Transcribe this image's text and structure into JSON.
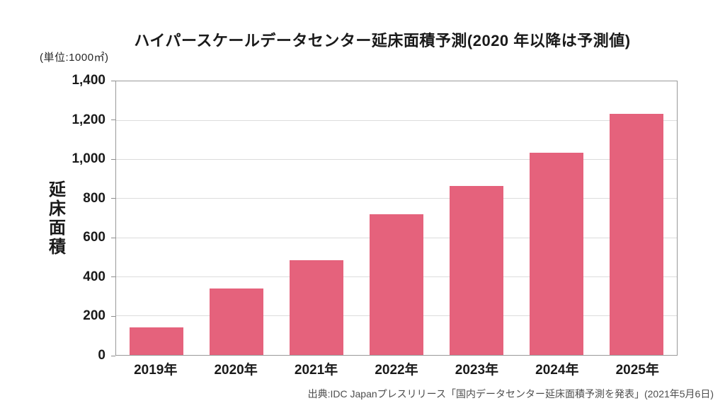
{
  "header": {
    "title": "ハイパースケールデータセンター延床面積予測(2020 年以降は予測値)",
    "unit_label": "(単位:1000㎡)"
  },
  "chart_data": {
    "type": "bar",
    "title": "ハイパースケールデータセンター延床面積予測(2020 年以降は予測値)",
    "unit_label": "(単位:1000㎡)",
    "categories": [
      "2019年",
      "2020年",
      "2021年",
      "2022年",
      "2023年",
      "2024年",
      "2025年"
    ],
    "values": [
      140,
      340,
      485,
      720,
      865,
      1035,
      1235
    ],
    "xlabel": "",
    "ylabel": "延床面積",
    "ylim": [
      0,
      1400
    ],
    "ytick_step": 200,
    "ytick_labels": [
      "0",
      "200",
      "400",
      "600",
      "800",
      "1,000",
      "1,200",
      "1,400"
    ],
    "grid": true,
    "legend": "none",
    "bar_color": "#e5627c"
  },
  "footer": {
    "source": "出典:IDC Japanプレスリリース「国内データセンター延床面積予測を発表」(2021年5月6日)"
  },
  "colors": {
    "background": "#ffffff",
    "bar": "#e5627c",
    "gridline": "#dcdcdc",
    "axis_border": "#999999",
    "text": "#1a1a1a",
    "source_text": "#4d4d4d"
  }
}
